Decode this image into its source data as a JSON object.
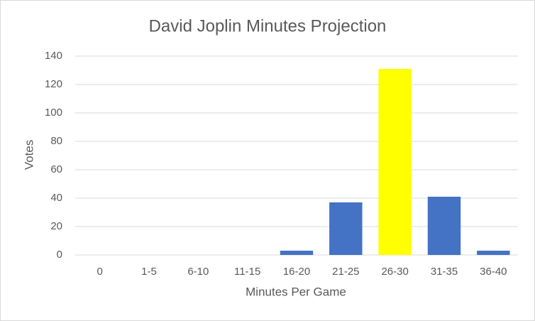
{
  "chart_data": {
    "type": "bar",
    "title": "David Joplin Minutes Projection",
    "x_label": "Minutes Per Game",
    "y_label": "Votes",
    "categories": [
      "0",
      "1-5",
      "6-10",
      "11-15",
      "16-20",
      "21-25",
      "26-30",
      "31-35",
      "36-40"
    ],
    "values": [
      0,
      0,
      0,
      0,
      3,
      37,
      131,
      41,
      3
    ],
    "colors": [
      "#4472c4",
      "#4472c4",
      "#4472c4",
      "#4472c4",
      "#4472c4",
      "#4472c4",
      "#ffff00",
      "#4472c4",
      "#4472c4"
    ],
    "ylim": [
      0,
      140
    ],
    "yticks": [
      0,
      20,
      40,
      60,
      80,
      100,
      120,
      140
    ],
    "grid": true
  }
}
